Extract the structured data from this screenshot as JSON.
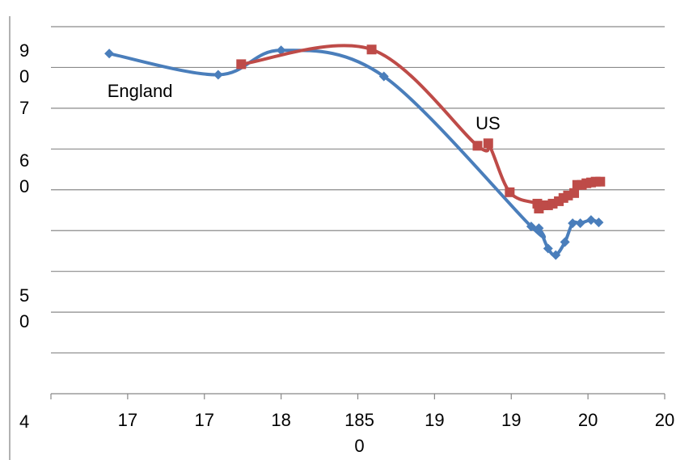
{
  "chart_data": {
    "type": "line",
    "annotations": [
      {
        "text": "England",
        "x": 1692,
        "y": 82
      },
      {
        "text": "US",
        "x": 1932,
        "y": 78
      }
    ],
    "series": [
      {
        "name": "England",
        "color": "#4a7ebb",
        "marker": "diamond",
        "x": [
          1688,
          1759,
          1800,
          1867,
          1963,
          1968,
          1974,
          1979,
          1985,
          1990,
          1995,
          2002,
          2007
        ],
        "values": [
          86.7,
          84.1,
          87.1,
          83.9,
          65.5,
          65.3,
          62.8,
          62.0,
          63.6,
          65.9,
          65.9,
          66.3,
          66.0
        ]
      },
      {
        "name": "US",
        "color": "#be4b48",
        "marker": "square",
        "x": [
          1774,
          1859,
          1928,
          1935,
          1949,
          1967,
          1968,
          1971,
          1974,
          1977,
          1981,
          1984,
          1987,
          1991,
          1993,
          1996,
          1999,
          2002,
          2005,
          2008
        ],
        "values": [
          85.4,
          87.2,
          75.4,
          75.7,
          69.7,
          68.3,
          67.7,
          68.1,
          68.1,
          68.3,
          68.6,
          69.0,
          69.3,
          69.6,
          70.6,
          70.6,
          70.8,
          70.9,
          71.0,
          71.0
        ]
      }
    ],
    "xlim": [
      1650,
      2050
    ],
    "xticks": [
      {
        "value": 1650,
        "label": ""
      },
      {
        "value": 1700,
        "label": "17"
      },
      {
        "value": 1750,
        "label": "17"
      },
      {
        "value": 1800,
        "label": "18"
      },
      {
        "value": 1850,
        "label": "1850"
      },
      {
        "value": 1900,
        "label": "19"
      },
      {
        "value": 1950,
        "label": "19"
      },
      {
        "value": 2000,
        "label": "20"
      },
      {
        "value": 2050,
        "label": "20"
      }
    ],
    "ylim": [
      45,
      90
    ],
    "yticks": [
      45,
      50,
      55,
      60,
      65,
      70,
      75,
      80,
      85,
      90
    ],
    "ytick_labels": [
      {
        "value": 87,
        "label": "90"
      },
      {
        "value": 80,
        "label": "7"
      },
      {
        "value": 73.5,
        "label": "60"
      },
      {
        "value": 57,
        "label": "50"
      },
      {
        "value": 41.5,
        "label": "4"
      }
    ],
    "grid": true,
    "smooth": true
  }
}
